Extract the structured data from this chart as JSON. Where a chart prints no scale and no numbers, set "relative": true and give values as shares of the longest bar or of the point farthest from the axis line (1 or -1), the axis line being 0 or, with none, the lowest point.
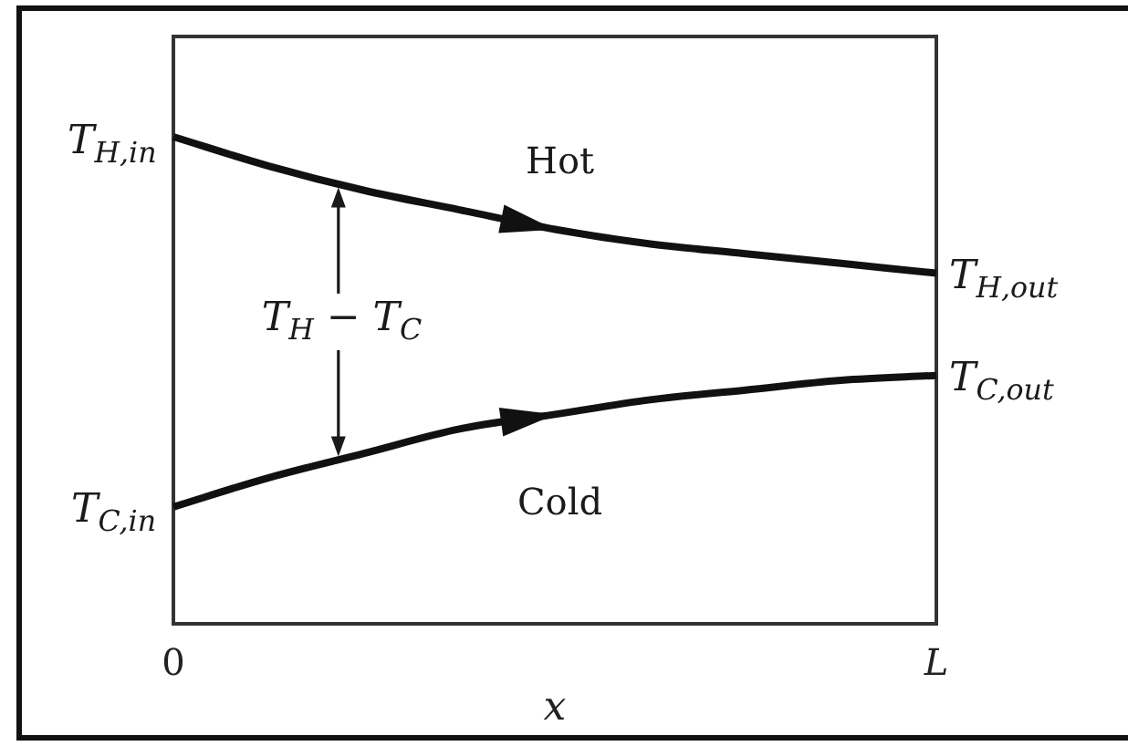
{
  "chart_data": {
    "type": "line",
    "xlabel": "x",
    "categories": [
      "0",
      null,
      null,
      null,
      null,
      null,
      null,
      null,
      "L"
    ],
    "relative": true,
    "series": [
      {
        "name": "Hot",
        "color": "#111111",
        "values": [
          1,
          0.94,
          0.89,
          0.85,
          0.81,
          0.78,
          0.76,
          0.74,
          0.72
        ]
      },
      {
        "name": "Cold",
        "color": "#111111",
        "values": [
          0.24,
          0.3,
          0.35,
          0.4,
          0.43,
          0.46,
          0.48,
          0.5,
          0.51
        ]
      }
    ],
    "annotations": [
      {
        "text": "T$_{H,in}$",
        "x": "0",
        "y": 1
      },
      {
        "text": "T$_{H,out}$",
        "x": "L",
        "y": 0.72
      },
      {
        "text": "T$_{C,in}$",
        "x": "0",
        "y": 0.24
      },
      {
        "text": "T$_{C,out}$",
        "x": "L",
        "y": 0.51
      },
      "T$_{H}$ − T$_{C}$"
    ]
  }
}
